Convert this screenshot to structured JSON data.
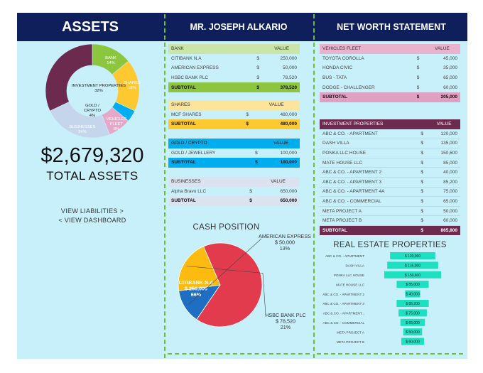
{
  "header": {
    "left_title": "ASSETS",
    "middle_title": "MR. JOSEPH ALKARIO",
    "right_title": "NET WORTH STATEMENT"
  },
  "colors": {
    "header_bg": "#0f1f5c",
    "panel_bg": "#c7f0fb",
    "divider": "#6fbf2a",
    "bank": "#8cc63f",
    "shares": "#fdc830",
    "gold": "#00aeef",
    "businesses": "#c5d6ec",
    "vehicles": "#e6a8c8",
    "investment": "#6b2a4e",
    "real_estate_bar": "#1de0c0"
  },
  "summary": {
    "total_value": "$2,679,320",
    "total_label": "TOTAL ASSETS",
    "link_liabilities": "VIEW LIABILITIES >",
    "link_dashboard": "< VIEW DASHBOARD"
  },
  "assets_donut": {
    "slices": [
      {
        "name": "BANK",
        "pct_label": "14%",
        "value": 14,
        "color": "#8cc63f"
      },
      {
        "name": "SHARES",
        "pct_label": "18%",
        "value": 18,
        "color": "#fdc830"
      },
      {
        "name": "GOLD / CRYPTO",
        "pct_label": "4%",
        "value": 4,
        "color": "#00aeef"
      },
      {
        "name": "VEHICLES FLEET",
        "pct_label": "8%",
        "value": 8,
        "color": "#e6a8c8"
      },
      {
        "name": "BUSINESSES",
        "pct_label": "24%",
        "value": 24,
        "color": "#c5d6ec"
      },
      {
        "name": "INVESTMENT PROPERTIES",
        "pct_label": "32%",
        "value": 32,
        "color": "#6b2a4e"
      }
    ]
  },
  "bank_table": {
    "header": [
      "BANK",
      "VALUE"
    ],
    "rows": [
      {
        "name": "CITIBANK N.A",
        "sym": "$",
        "value": "250,000"
      },
      {
        "name": "AMERICAN EXPRESS",
        "sym": "$",
        "value": "50,000"
      },
      {
        "name": "HSBC BANK PLC",
        "sym": "$",
        "value": "78,520"
      }
    ],
    "subtotal": {
      "name": "SUBTOTAL",
      "sym": "$",
      "value": "378,520"
    }
  },
  "shares_table": {
    "header": [
      "SHARES",
      "VALUE"
    ],
    "rows": [
      {
        "name": "MCF SHARES",
        "sym": "$",
        "value": "480,000"
      }
    ],
    "subtotal": {
      "name": "SUBTOTAL",
      "sym": "$",
      "value": "480,000"
    }
  },
  "gold_table": {
    "header": [
      "GOLD / CRYPTO",
      "VALUE"
    ],
    "rows": [
      {
        "name": "GOLD / JEWELLERY",
        "sym": "$",
        "value": "100,000"
      }
    ],
    "subtotal": {
      "name": "SUBTOTAL",
      "sym": "$",
      "value": "100,000"
    }
  },
  "business_table": {
    "header": [
      "BUSINESSES",
      "VALUE"
    ],
    "rows": [
      {
        "name": "Alpha Bravo LLC",
        "sym": "$",
        "value": "650,000"
      }
    ],
    "subtotal": {
      "name": "SUBTOTAL",
      "sym": "$",
      "value": "650,000"
    }
  },
  "vehicles_table": {
    "header": [
      "VEHICLES FLEET",
      "VALUE"
    ],
    "rows": [
      {
        "name": "TOYOTA COROLLA",
        "sym": "$",
        "value": "45,000"
      },
      {
        "name": "HONDA CIVIC",
        "sym": "$",
        "value": "35,000"
      },
      {
        "name": "BUS - TATA",
        "sym": "$",
        "value": "65,000"
      },
      {
        "name": "DODGE - CHALLENGER",
        "sym": "$",
        "value": "60,000"
      }
    ],
    "subtotal": {
      "name": "SUBTOTAL",
      "sym": "$",
      "value": "205,000"
    }
  },
  "investment_table": {
    "header": [
      "INVESTMENT PROPERTIES",
      "VALUE"
    ],
    "rows": [
      {
        "name": "ABC & CO. - APARTMENT",
        "sym": "$",
        "value": "120,000"
      },
      {
        "name": "DASH VILLA",
        "sym": "$",
        "value": "135,000"
      },
      {
        "name": "PONKA LLC HOUSE",
        "sym": "$",
        "value": "150,600"
      },
      {
        "name": "MATE HOUSE LLC",
        "sym": "$",
        "value": "85,000"
      },
      {
        "name": "ABC & CO. - APARTMENT 2",
        "sym": "$",
        "value": "40,000"
      },
      {
        "name": "ABC & CO. - APARTMENT 3",
        "sym": "$",
        "value": "85,200"
      },
      {
        "name": "ABC & CO. - APARTMENT 4A",
        "sym": "$",
        "value": "75,000"
      },
      {
        "name": "ABC & CO. - COMMERCIAL",
        "sym": "$",
        "value": "65,000"
      },
      {
        "name": "META PROJECT A",
        "sym": "$",
        "value": "50,000"
      },
      {
        "name": "META PROJECT B",
        "sym": "$",
        "value": "60,000"
      }
    ],
    "subtotal": {
      "name": "SUBTOTAL",
      "sym": "$",
      "value": "865,800"
    }
  },
  "chart_data": [
    {
      "type": "pie",
      "title": "CASH POSITION",
      "categories": [
        "CITIBANK N.A",
        "AMERICAN EXPRESS",
        "HSBC BANK PLC"
      ],
      "values": [
        250000,
        50000,
        78520
      ],
      "value_labels": [
        "$ 250,000",
        "$ 50,000",
        "$ 78,520"
      ],
      "pct_labels": [
        "66%",
        "13%",
        "21%"
      ],
      "colors": [
        "#e23b4e",
        "#1e6fc4",
        "#fdbb10"
      ]
    },
    {
      "type": "bar",
      "orientation": "horizontal-funnel",
      "title": "REAL ESTATE PROPERTIES",
      "categories": [
        "ABC & CO. - APARTMENT",
        "DASH VILLA",
        "PONKA LLC HOUSE",
        "MATE HOUSE LLC",
        "ABC & CO. - APARTMENT 2",
        "ABC & CO. - APARTMENT 3",
        "ABC & CO. - APARTMENT...",
        "ABC & CO. - COMMERCIAL",
        "META PROJECT A",
        "META PROJECT B"
      ],
      "values": [
        120000,
        135000,
        150600,
        85000,
        40000,
        85200,
        75000,
        65000,
        50000,
        60000
      ],
      "value_labels": [
        "$ 120,000",
        "$ 135,000",
        "$ 150,600",
        "$ 85,000",
        "$ 40,000",
        "$ 85,200",
        "$ 75,000",
        "$ 65,000",
        "$ 50,000",
        "$ 60,000"
      ],
      "color": "#1de0c0"
    }
  ]
}
